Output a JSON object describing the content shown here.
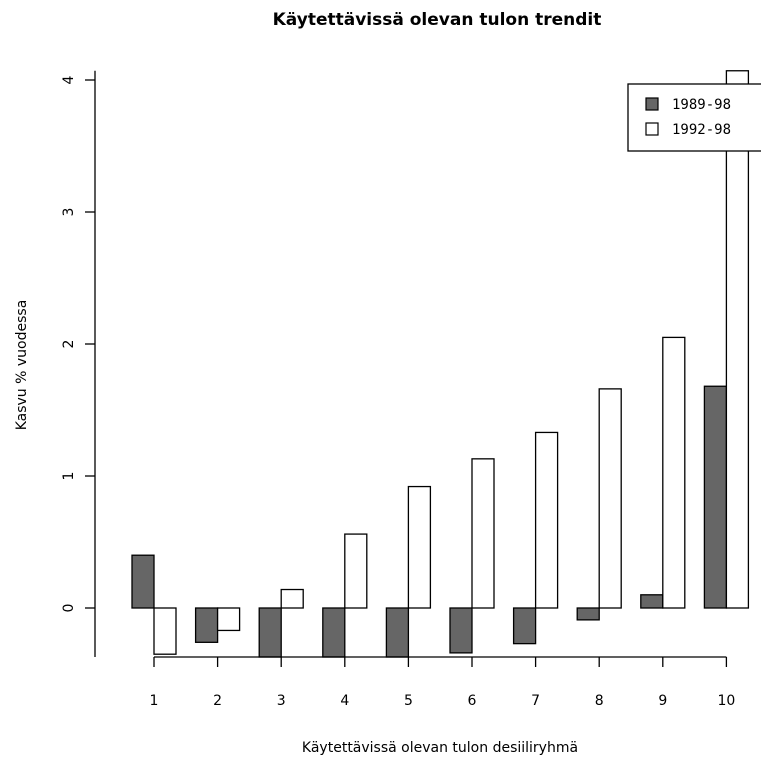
{
  "chart_data": {
    "type": "bar",
    "title": "Käytettävissä olevan tulon trendit",
    "xlabel": "Käytettävissä olevan tulon desiiliryhmä",
    "ylabel": "Kasvu % vuodessa",
    "categories": [
      "1",
      "2",
      "3",
      "4",
      "5",
      "6",
      "7",
      "8",
      "9",
      "10"
    ],
    "series": [
      {
        "name": "1989-98",
        "color": "#666666",
        "values": [
          0.4,
          -0.26,
          -0.38,
          -0.38,
          -0.38,
          -0.34,
          -0.27,
          -0.09,
          0.1,
          1.68
        ]
      },
      {
        "name": "1992-98",
        "color": "#ffffff",
        "values": [
          -0.35,
          -0.17,
          0.14,
          0.56,
          0.92,
          1.13,
          1.33,
          1.66,
          2.05,
          4.07
        ]
      }
    ],
    "yticks": [
      "0",
      "1",
      "2",
      "3",
      "4"
    ],
    "ylim": [
      -0.38,
      4.07
    ],
    "legend_position": "top-right",
    "grid": false
  }
}
